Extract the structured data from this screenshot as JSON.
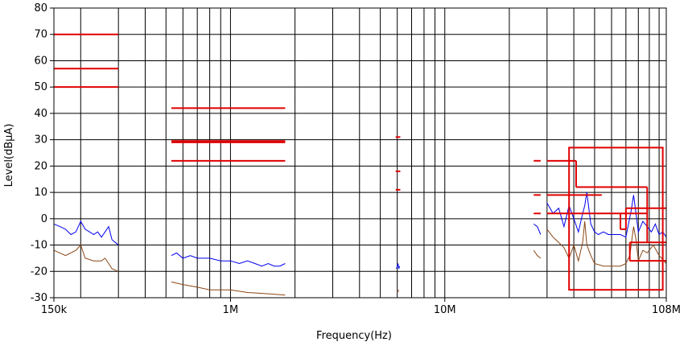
{
  "chart_data": {
    "type": "line",
    "xlabel": "Frequency(Hz)",
    "ylabel": "Level(dBµA)",
    "x_scale": "log",
    "xlim": [
      150000,
      108000000
    ],
    "ylim": [
      -30,
      80
    ],
    "grid": true,
    "x_ticks": [
      {
        "value": 150000,
        "label": "150k"
      },
      {
        "value": 1000000,
        "label": "1M"
      },
      {
        "value": 10000000,
        "label": "10M"
      },
      {
        "value": 108000000,
        "label": "108M"
      }
    ],
    "y_ticks": [
      80,
      70,
      60,
      50,
      40,
      30,
      20,
      10,
      0,
      -10,
      -20,
      -30
    ],
    "colors": {
      "limits": "#e00000",
      "peak": "#0000ee",
      "average": "#8b4513",
      "grid": "#000000"
    },
    "limit_segments": [
      {
        "x": [
          150000,
          300000
        ],
        "y": 70
      },
      {
        "x": [
          150000,
          300000
        ],
        "y": 57
      },
      {
        "x": [
          150000,
          300000
        ],
        "y": 50
      },
      {
        "x": [
          530000,
          1800000
        ],
        "y": 42
      },
      {
        "x": [
          530000,
          1800000
        ],
        "y": 29.5
      },
      {
        "x": [
          530000,
          1800000
        ],
        "y": 29
      },
      {
        "x": [
          530000,
          1800000
        ],
        "y": 22
      },
      {
        "x": [
          5900000,
          6200000
        ],
        "y": 31
      },
      {
        "x": [
          5900000,
          6200000
        ],
        "y": 18
      },
      {
        "x": [
          5900000,
          6200000
        ],
        "y": 11
      },
      {
        "x": [
          26000000,
          28000000
        ],
        "y": 22
      },
      {
        "x": [
          26000000,
          28000000
        ],
        "y": 9
      },
      {
        "x": [
          26000000,
          28000000
        ],
        "y": 2
      },
      {
        "x": [
          30000000,
          41000000
        ],
        "y": 22
      },
      {
        "x": [
          41000000,
          41000000
        ],
        "y": [
          22,
          12
        ]
      },
      {
        "x": [
          41000000,
          88000000
        ],
        "y": 12
      },
      {
        "x": [
          30000000,
          54000000
        ],
        "y": 9
      },
      {
        "x": [
          30000000,
          88000000
        ],
        "y": 2
      },
      {
        "x": [
          66000000,
          66000000
        ],
        "y": [
          2,
          -4
        ]
      },
      {
        "x": [
          66000000,
          70000000
        ],
        "y": -4
      },
      {
        "x": [
          70000000,
          108000000
        ],
        "y": 4
      },
      {
        "x": [
          70000000,
          70000000
        ],
        "y": [
          4,
          -4
        ]
      },
      {
        "x": [
          88000000,
          88000000
        ],
        "y": [
          12,
          -9
        ]
      },
      {
        "x": [
          73000000,
          108000000
        ],
        "y": -9
      },
      {
        "x": [
          73000000,
          73000000
        ],
        "y": [
          -9,
          -16
        ]
      },
      {
        "x": [
          73000000,
          108000000
        ],
        "y": -16
      }
    ],
    "limit_rects": [
      {
        "x": [
          38000000,
          104000000
        ],
        "y": [
          -27,
          27
        ]
      }
    ],
    "series": [
      {
        "role": "peak",
        "segments": [
          {
            "x": [
              150000,
              160000,
              170000,
              180000,
              190000,
              200000,
              210000,
              220000,
              230000,
              240000,
              250000,
              260000,
              270000,
              280000,
              290000,
              300000
            ],
            "y": [
              -2,
              -3,
              -4,
              -6,
              -5,
              -1,
              -4,
              -5,
              -6,
              -5,
              -7,
              -5,
              -3,
              -8,
              -9,
              -10
            ]
          },
          {
            "x": [
              530000,
              560000,
              600000,
              650000,
              700000,
              800000,
              900000,
              1000000,
              1100000,
              1200000,
              1300000,
              1400000,
              1500000,
              1600000,
              1700000,
              1800000
            ],
            "y": [
              -14,
              -13,
              -15,
              -14,
              -15,
              -15,
              -16,
              -16,
              -17,
              -16,
              -17,
              -18,
              -17,
              -18,
              -18,
              -17
            ]
          },
          {
            "x": [
              5950000,
              6000000,
              6050000,
              6100000,
              6150000
            ],
            "y": [
              -19,
              -18,
              -17,
              -19,
              -18
            ]
          },
          {
            "x": [
              26000000,
              27000000,
              28000000
            ],
            "y": [
              -2,
              -3,
              -6
            ]
          },
          {
            "x": [
              30000000,
              32000000,
              34000000,
              36000000,
              38000000,
              40000000,
              42000000,
              44000000,
              45000000,
              46000000,
              48000000,
              50000000,
              52000000,
              55000000,
              58000000,
              62000000,
              66000000,
              70000000,
              74000000,
              76000000,
              78000000,
              80000000,
              84000000,
              88000000,
              92000000,
              96000000,
              100000000,
              104000000,
              108000000
            ],
            "y": [
              6,
              2,
              4,
              -3,
              5,
              0,
              -5,
              2,
              5,
              10,
              -2,
              -5,
              -6,
              -5,
              -6,
              -6,
              -6,
              -7,
              3,
              9,
              2,
              -5,
              -1,
              -3,
              -5,
              -2,
              -6,
              -5,
              -7
            ]
          }
        ]
      },
      {
        "role": "average",
        "segments": [
          {
            "x": [
              150000,
              170000,
              190000,
              200000,
              210000,
              230000,
              250000,
              260000,
              270000,
              280000,
              300000
            ],
            "y": [
              -12,
              -14,
              -12,
              -10,
              -15,
              -16,
              -16,
              -15,
              -17,
              -19,
              -20
            ]
          },
          {
            "x": [
              530000,
              600000,
              700000,
              800000,
              1000000,
              1200000,
              1500000,
              1800000
            ],
            "y": [
              -24,
              -25,
              -26,
              -27,
              -27,
              -28,
              -28.5,
              -29
            ]
          },
          {
            "x": [
              6000000,
              6100000
            ],
            "y": [
              -28,
              -27
            ]
          },
          {
            "x": [
              26000000,
              27000000,
              28000000
            ],
            "y": [
              -12,
              -14,
              -15
            ]
          },
          {
            "x": [
              30000000,
              32000000,
              34000000,
              36000000,
              38000000,
              40000000,
              42000000,
              44000000,
              45000000,
              46000000,
              48000000,
              50000000,
              55000000,
              60000000,
              66000000,
              70000000,
              73000000,
              76000000,
              78000000,
              80000000,
              84000000,
              88000000,
              94000000,
              100000000,
              108000000
            ],
            "y": [
              -4,
              -7,
              -9,
              -11,
              -15,
              -10,
              -16,
              -9,
              -1,
              -10,
              -14,
              -17,
              -18,
              -18,
              -18,
              -17,
              -14,
              -3,
              -8,
              -16,
              -12,
              -13,
              -10,
              -14,
              -17
            ]
          }
        ]
      }
    ]
  }
}
